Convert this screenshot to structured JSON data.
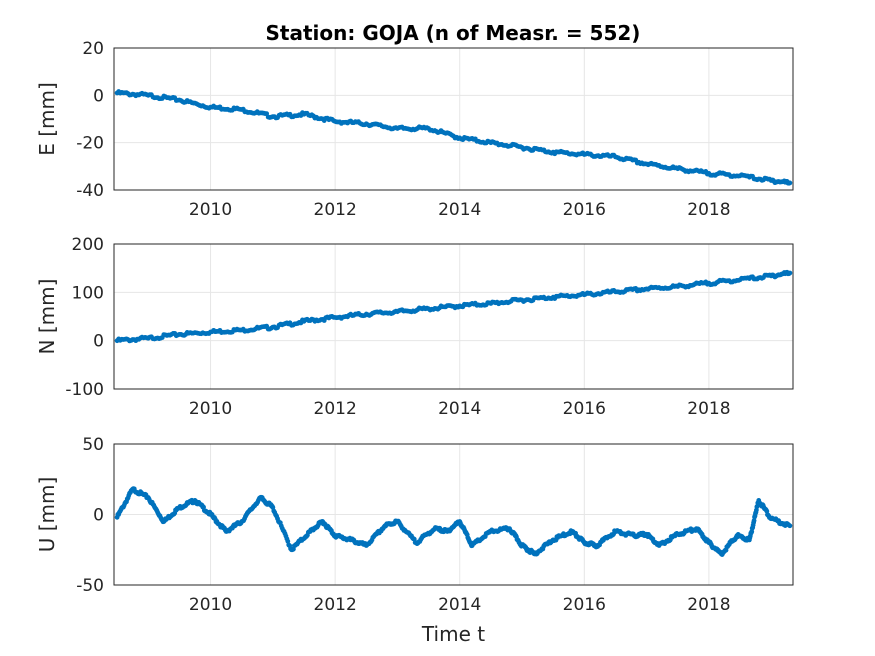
{
  "title": "Station: GOJA (n of Measr. = 552)",
  "colors": {
    "points": "#0072BD",
    "grid": "#e6e6e6",
    "axis": "#262626"
  },
  "chart_data": [
    {
      "type": "scatter",
      "panel": "E",
      "ylabel": "E [mm]",
      "xlim": [
        2008.45,
        2019.35
      ],
      "ylim": [
        -40,
        20
      ],
      "xticks": [
        2010,
        2012,
        2014,
        2016,
        2018
      ],
      "yticks": [
        20,
        0,
        -20,
        -40
      ],
      "grid": true,
      "x": [
        2008.5,
        2009.0,
        2009.5,
        2010.0,
        2010.5,
        2011.0,
        2011.5,
        2012.0,
        2012.5,
        2013.0,
        2013.5,
        2014.0,
        2014.5,
        2015.0,
        2015.5,
        2016.0,
        2016.5,
        2017.0,
        2017.5,
        2018.0,
        2018.5,
        2019.0,
        2019.3
      ],
      "y": [
        1,
        0,
        -2,
        -5,
        -6,
        -9,
        -8,
        -11,
        -12,
        -14,
        -14,
        -18,
        -20,
        -22,
        -24,
        -25,
        -26,
        -29,
        -31,
        -33,
        -34,
        -36,
        -37
      ]
    },
    {
      "type": "scatter",
      "panel": "N",
      "ylabel": "N [mm]",
      "xlim": [
        2008.45,
        2019.35
      ],
      "ylim": [
        -100,
        200
      ],
      "xticks": [
        2010,
        2012,
        2014,
        2016,
        2018
      ],
      "yticks": [
        200,
        100,
        0,
        -100
      ],
      "grid": true,
      "x": [
        2008.5,
        2009.0,
        2009.5,
        2010.0,
        2010.5,
        2011.0,
        2011.5,
        2012.0,
        2012.5,
        2013.0,
        2013.5,
        2014.0,
        2014.5,
        2015.0,
        2015.5,
        2016.0,
        2016.5,
        2017.0,
        2017.5,
        2018.0,
        2018.5,
        2019.0,
        2019.3
      ],
      "y": [
        0,
        5,
        13,
        18,
        22,
        28,
        40,
        48,
        55,
        60,
        66,
        72,
        77,
        84,
        90,
        95,
        101,
        107,
        112,
        119,
        126,
        134,
        140
      ]
    },
    {
      "type": "scatter",
      "panel": "U",
      "ylabel": "U [mm]",
      "xlabel": "Time t",
      "xlim": [
        2008.45,
        2019.35
      ],
      "ylim": [
        -50,
        50
      ],
      "xticks": [
        2010,
        2012,
        2014,
        2016,
        2018
      ],
      "yticks": [
        50,
        0,
        -50
      ],
      "grid": true,
      "x": [
        2008.5,
        2008.75,
        2009.0,
        2009.25,
        2009.5,
        2009.75,
        2010.0,
        2010.25,
        2010.5,
        2010.8,
        2011.0,
        2011.3,
        2011.6,
        2011.8,
        2012.0,
        2012.25,
        2012.5,
        2012.8,
        2013.0,
        2013.3,
        2013.6,
        2013.8,
        2014.0,
        2014.2,
        2014.5,
        2014.8,
        2015.0,
        2015.2,
        2015.5,
        2015.8,
        2016.0,
        2016.2,
        2016.5,
        2016.8,
        2017.0,
        2017.2,
        2017.5,
        2017.8,
        2018.0,
        2018.2,
        2018.45,
        2018.65,
        2018.8,
        2019.0,
        2019.3
      ],
      "y": [
        -2,
        18,
        12,
        -5,
        5,
        10,
        0,
        -12,
        -5,
        12,
        5,
        -25,
        -12,
        -5,
        -15,
        -18,
        -22,
        -8,
        -5,
        -20,
        -10,
        -12,
        -5,
        -22,
        -12,
        -10,
        -22,
        -28,
        -18,
        -12,
        -20,
        -22,
        -12,
        -15,
        -14,
        -22,
        -14,
        -10,
        -20,
        -28,
        -15,
        -18,
        10,
        -3,
        -8
      ]
    }
  ]
}
